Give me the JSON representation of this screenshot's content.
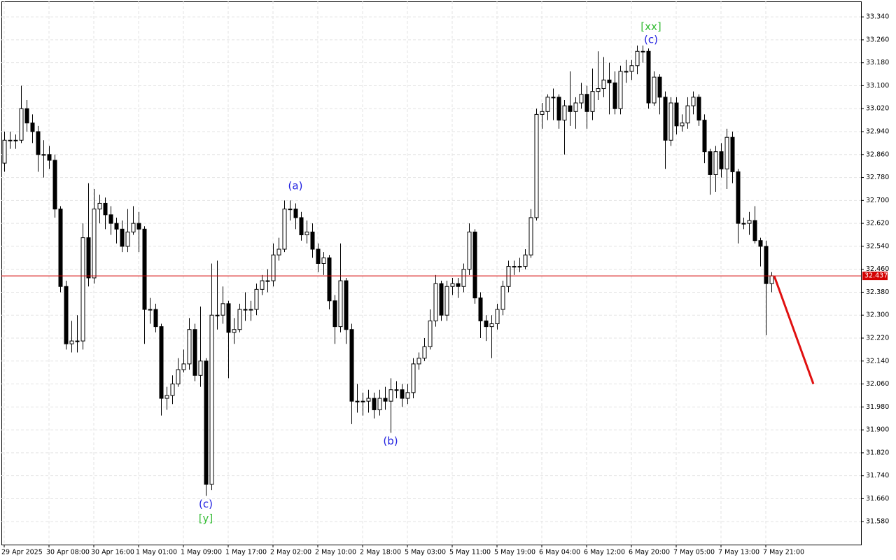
{
  "chart_data": {
    "type": "candlestick",
    "open": [
      32.83,
      32.91,
      32.91,
      32.91,
      33.02,
      32.97,
      32.94,
      32.86,
      32.86,
      32.84,
      32.67,
      32.4,
      32.2,
      32.21,
      32.21,
      32.57,
      32.43,
      32.67,
      32.69,
      32.65,
      32.62,
      32.6,
      32.54,
      32.59,
      32.62,
      32.6,
      32.32,
      32.32,
      32.26,
      32.01,
      32.02,
      32.06,
      32.11,
      32.13,
      32.25,
      32.09,
      32.14,
      31.71,
      32.3,
      32.3,
      32.34,
      32.24,
      32.25,
      32.32,
      32.32,
      32.32,
      32.39,
      32.42,
      32.42,
      32.51,
      32.53,
      32.67,
      32.67,
      32.64,
      32.58,
      32.59,
      32.53,
      32.48,
      32.5,
      32.35,
      32.26,
      32.42,
      32.25,
      32.0,
      32.0,
      32.0,
      32.01,
      31.97,
      32.01,
      32.0,
      32.04,
      32.04,
      32.01,
      32.03,
      32.13,
      32.15,
      32.19,
      32.28,
      32.41,
      32.3,
      32.4,
      32.41,
      32.4,
      32.46,
      32.59,
      32.36,
      32.28,
      32.26,
      32.27,
      32.32,
      32.4,
      32.47,
      32.47,
      32.47,
      32.51,
      32.64,
      33.0,
      33.01,
      33.06,
      33.06,
      32.98,
      33.03,
      33.01,
      33.04,
      33.07,
      33.01,
      33.08,
      33.09,
      33.12,
      33.11,
      33.02,
      33.15,
      33.15,
      33.17,
      33.22,
      33.22,
      33.04,
      33.13,
      33.06,
      32.91,
      33.04,
      32.96,
      32.97,
      33.03,
      33.06,
      32.98,
      32.87,
      32.79,
      32.87,
      32.81,
      32.92,
      32.8,
      32.62,
      32.62,
      32.63,
      32.56,
      32.54,
      32.41
    ],
    "high": [
      32.94,
      32.94,
      32.93,
      33.1,
      33.05,
      33.0,
      32.96,
      32.91,
      32.89,
      32.86,
      32.68,
      32.42,
      32.28,
      32.3,
      32.62,
      32.76,
      32.74,
      32.72,
      32.71,
      32.68,
      32.64,
      32.63,
      32.67,
      32.68,
      32.66,
      32.61,
      32.36,
      32.34,
      32.27,
      32.05,
      32.09,
      32.15,
      32.18,
      32.29,
      32.27,
      32.33,
      32.15,
      32.48,
      32.49,
      32.4,
      32.35,
      32.29,
      32.34,
      32.38,
      32.35,
      32.41,
      32.44,
      32.46,
      32.55,
      32.57,
      32.7,
      32.7,
      32.69,
      32.66,
      32.63,
      32.62,
      32.55,
      32.52,
      32.51,
      32.37,
      32.55,
      32.43,
      32.27,
      32.06,
      32.03,
      32.04,
      32.03,
      32.04,
      32.05,
      32.08,
      32.07,
      32.06,
      32.06,
      32.15,
      32.17,
      32.22,
      32.32,
      32.44,
      32.42,
      32.42,
      32.43,
      32.43,
      32.48,
      32.62,
      32.6,
      32.38,
      32.3,
      32.3,
      32.34,
      32.42,
      32.49,
      32.49,
      32.5,
      32.53,
      32.67,
      33.02,
      33.04,
      33.07,
      33.09,
      33.07,
      33.05,
      33.15,
      33.06,
      33.11,
      33.1,
      33.16,
      33.22,
      33.2,
      33.18,
      33.15,
      33.17,
      33.19,
      33.19,
      33.24,
      33.24,
      33.23,
      33.15,
      33.14,
      33.08,
      33.06,
      33.06,
      33.0,
      33.06,
      33.08,
      33.07,
      33.0,
      32.88,
      32.89,
      32.9,
      32.95,
      32.94,
      32.81,
      32.64,
      32.66,
      32.68,
      32.57,
      32.56,
      32.45
    ],
    "low": [
      32.8,
      32.88,
      32.88,
      32.9,
      32.94,
      32.9,
      32.8,
      32.78,
      32.81,
      32.64,
      32.38,
      32.18,
      32.17,
      32.17,
      32.18,
      32.4,
      32.41,
      32.62,
      32.6,
      32.58,
      32.55,
      32.52,
      32.52,
      32.58,
      32.52,
      32.2,
      32.27,
      32.24,
      31.95,
      31.97,
      31.99,
      32.05,
      32.1,
      32.11,
      32.07,
      32.05,
      31.67,
      31.69,
      32.25,
      32.27,
      32.08,
      32.2,
      32.24,
      32.28,
      32.28,
      32.3,
      32.37,
      32.38,
      32.4,
      32.49,
      32.52,
      32.63,
      32.6,
      32.56,
      32.55,
      32.5,
      32.45,
      32.44,
      32.32,
      32.2,
      32.24,
      32.2,
      31.92,
      31.96,
      31.95,
      31.96,
      31.94,
      31.95,
      31.97,
      31.89,
      32.01,
      31.98,
      31.99,
      32.01,
      32.11,
      32.14,
      32.18,
      32.26,
      32.28,
      32.28,
      32.37,
      32.36,
      32.38,
      32.44,
      32.34,
      32.22,
      32.21,
      32.15,
      32.25,
      32.3,
      32.38,
      32.44,
      32.45,
      32.46,
      32.5,
      32.63,
      32.95,
      32.98,
      32.98,
      32.95,
      32.86,
      32.96,
      32.95,
      33.02,
      32.95,
      32.98,
      33.05,
      33.06,
      33.0,
      33.0,
      33.0,
      33.11,
      33.12,
      33.14,
      33.18,
      33.02,
      33.03,
      33.0,
      32.81,
      32.89,
      32.93,
      32.94,
      32.95,
      33.0,
      32.96,
      32.83,
      32.72,
      32.73,
      32.78,
      32.74,
      32.76,
      32.55,
      32.6,
      32.58,
      32.55,
      32.47,
      32.23,
      32.38
    ],
    "close": [
      32.91,
      32.91,
      32.91,
      33.02,
      32.97,
      32.94,
      32.86,
      32.86,
      32.84,
      32.67,
      32.4,
      32.2,
      32.21,
      32.21,
      32.57,
      32.43,
      32.67,
      32.69,
      32.65,
      32.62,
      32.6,
      32.54,
      32.59,
      32.62,
      32.6,
      32.32,
      32.32,
      32.26,
      32.01,
      32.02,
      32.06,
      32.11,
      32.13,
      32.25,
      32.09,
      32.14,
      31.71,
      32.3,
      32.3,
      32.34,
      32.24,
      32.25,
      32.32,
      32.32,
      32.32,
      32.39,
      32.42,
      32.42,
      32.51,
      32.53,
      32.67,
      32.67,
      32.64,
      32.58,
      32.59,
      32.53,
      32.48,
      32.5,
      32.35,
      32.26,
      32.42,
      32.25,
      32.0,
      32.0,
      32.0,
      32.01,
      31.97,
      32.01,
      32.0,
      32.04,
      32.04,
      32.01,
      32.03,
      32.13,
      32.15,
      32.19,
      32.28,
      32.41,
      32.3,
      32.4,
      32.41,
      32.4,
      32.46,
      32.59,
      32.36,
      32.28,
      32.26,
      32.27,
      32.32,
      32.4,
      32.47,
      32.47,
      32.47,
      32.51,
      32.64,
      33.0,
      33.01,
      33.06,
      33.06,
      32.98,
      33.03,
      33.01,
      33.04,
      33.07,
      33.01,
      33.08,
      33.09,
      33.12,
      33.11,
      33.02,
      33.15,
      33.15,
      33.17,
      33.22,
      33.22,
      33.04,
      33.13,
      33.06,
      32.91,
      33.04,
      32.96,
      32.97,
      33.03,
      33.06,
      32.98,
      32.87,
      32.79,
      32.87,
      32.81,
      32.92,
      32.8,
      32.62,
      32.62,
      32.63,
      32.56,
      32.54,
      32.41,
      32.437
    ],
    "xlim": [
      -0.5,
      153
    ],
    "xticks": [
      {
        "value": 0,
        "label": "29 Apr 2025"
      },
      {
        "value": 8,
        "label": "30 Apr 08:00"
      },
      {
        "value": 16,
        "label": "30 Apr 16:00"
      },
      {
        "value": 24,
        "label": "1 May 01:00"
      },
      {
        "value": 32,
        "label": "1 May 09:00"
      },
      {
        "value": 40,
        "label": "1 May 17:00"
      },
      {
        "value": 48,
        "label": "2 May 02:00"
      },
      {
        "value": 56,
        "label": "2 May 10:00"
      },
      {
        "value": 64,
        "label": "2 May 18:00"
      },
      {
        "value": 72,
        "label": "5 May 03:00"
      },
      {
        "value": 80,
        "label": "5 May 11:00"
      },
      {
        "value": 88,
        "label": "5 May 19:00"
      },
      {
        "value": 96,
        "label": "6 May 04:00"
      },
      {
        "value": 104,
        "label": "6 May 12:00"
      },
      {
        "value": 112,
        "label": "6 May 20:00"
      },
      {
        "value": 120,
        "label": "7 May 05:00"
      },
      {
        "value": 128,
        "label": "7 May 13:00"
      },
      {
        "value": 136,
        "label": "7 May 21:00"
      }
    ],
    "ylim": [
      31.5,
      33.394
    ],
    "yticks": [
      {
        "value": 31.58,
        "label": "31.580"
      },
      {
        "value": 31.66,
        "label": "31.660"
      },
      {
        "value": 31.74,
        "label": "31.740"
      },
      {
        "value": 31.82,
        "label": "31.820"
      },
      {
        "value": 31.9,
        "label": "31.900"
      },
      {
        "value": 31.98,
        "label": "31.980"
      },
      {
        "value": 32.06,
        "label": "32.060"
      },
      {
        "value": 32.14,
        "label": "32.140"
      },
      {
        "value": 32.22,
        "label": "32.220"
      },
      {
        "value": 32.3,
        "label": "32.300"
      },
      {
        "value": 32.38,
        "label": "32.380"
      },
      {
        "value": 32.46,
        "label": "32.460"
      },
      {
        "value": 32.54,
        "label": "32.540"
      },
      {
        "value": 32.62,
        "label": "32.620"
      },
      {
        "value": 32.7,
        "label": "32.700"
      },
      {
        "value": 32.78,
        "label": "32.780"
      },
      {
        "value": 32.86,
        "label": "32.860"
      },
      {
        "value": 32.94,
        "label": "32.940"
      },
      {
        "value": 33.02,
        "label": "33.020"
      },
      {
        "value": 33.1,
        "label": "33.100"
      },
      {
        "value": 33.18,
        "label": "33.180"
      },
      {
        "value": 33.26,
        "label": "33.260"
      },
      {
        "value": 33.34,
        "label": "33.340"
      }
    ],
    "grid": true,
    "bull_color": "#ffffff",
    "bear_color": "#000000",
    "current_price": {
      "value": 32.437,
      "label": "32.437",
      "color": "#d40000"
    },
    "forecast": {
      "x": [
        137.5,
        144.5
      ],
      "y": [
        32.437,
        32.06
      ],
      "color": "#e01010"
    },
    "annotations": [
      {
        "text": "(a)",
        "x": 52,
        "y": 32.75,
        "color": "#2020e0"
      },
      {
        "text": "(b)",
        "x": 69,
        "y": 31.86,
        "color": "#2020e0"
      },
      {
        "text": "(c)",
        "x": 36,
        "y": 31.64,
        "color": "#2020e0"
      },
      {
        "text": "[y]",
        "x": 36,
        "y": 31.59,
        "color": "#33bb33"
      },
      {
        "text": "(c)",
        "x": 115.5,
        "y": 33.26,
        "color": "#2020e0"
      },
      {
        "text": "[xx]",
        "x": 115.5,
        "y": 33.305,
        "color": "#33bb33"
      }
    ]
  }
}
